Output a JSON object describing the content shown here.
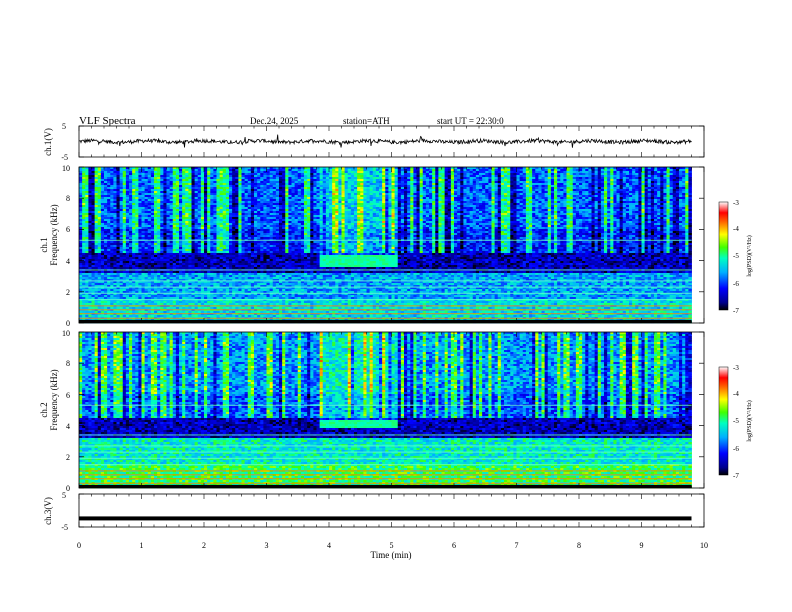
{
  "header": {
    "title": "VLF  Spectra",
    "date": "Dec.24, 2025",
    "station": "station=ATH",
    "start": "start  UT  =   22:30:0"
  },
  "chart_data": [
    {
      "type": "line",
      "panel": "ch1-waveform",
      "ylabel": "ch.1(V)",
      "ylim": [
        -5,
        5
      ],
      "yticks": [
        "5",
        "-5"
      ],
      "baseline_v": 0,
      "noise_amplitude_v": 1
    },
    {
      "type": "heatmap",
      "panel": "ch1-spectrogram",
      "ylabel_channel": "ch.1",
      "ylabel": "Frequency  (kHz)",
      "ylim": [
        0,
        10
      ],
      "yticks": [
        "0",
        "2",
        "4",
        "6",
        "8",
        "10"
      ],
      "xlim": [
        0,
        9.8
      ],
      "highlight": {
        "t_start": 3.85,
        "t_end": 5.1,
        "f_low": 3.6,
        "f_high": 4.3
      },
      "colorbar": {
        "label": "log(PSD)(V²/Hz)",
        "range": [
          -7,
          -3
        ],
        "ticks": [
          "-3",
          "-4",
          "-5",
          "-6",
          "-7"
        ]
      }
    },
    {
      "type": "heatmap",
      "panel": "ch2-spectrogram",
      "ylabel_channel": "ch.2",
      "ylabel": "Frequency  (kHz)",
      "ylim": [
        0,
        10
      ],
      "yticks": [
        "0",
        "2",
        "4",
        "6",
        "8",
        "10"
      ],
      "xlim": [
        0,
        9.8
      ],
      "highlight": {
        "t_start": 3.85,
        "t_end": 5.1,
        "f_low": 3.8,
        "f_high": 4.3
      },
      "colorbar": {
        "label": "log(PSD)(V²/Hz)",
        "range": [
          -7,
          -3
        ],
        "ticks": [
          "-3",
          "-4",
          "-5",
          "-6",
          "-7"
        ]
      }
    },
    {
      "type": "line",
      "panel": "ch3-waveform",
      "ylabel": "ch.3(V)",
      "ylim": [
        -5,
        5
      ],
      "yticks": [
        "5",
        "-5"
      ],
      "baseline_v": -2.4,
      "xlabel": "Time  (min)",
      "xlim": [
        0,
        10
      ],
      "xticks": [
        "0",
        "1",
        "2",
        "3",
        "4",
        "5",
        "6",
        "7",
        "8",
        "9",
        "10"
      ]
    }
  ]
}
